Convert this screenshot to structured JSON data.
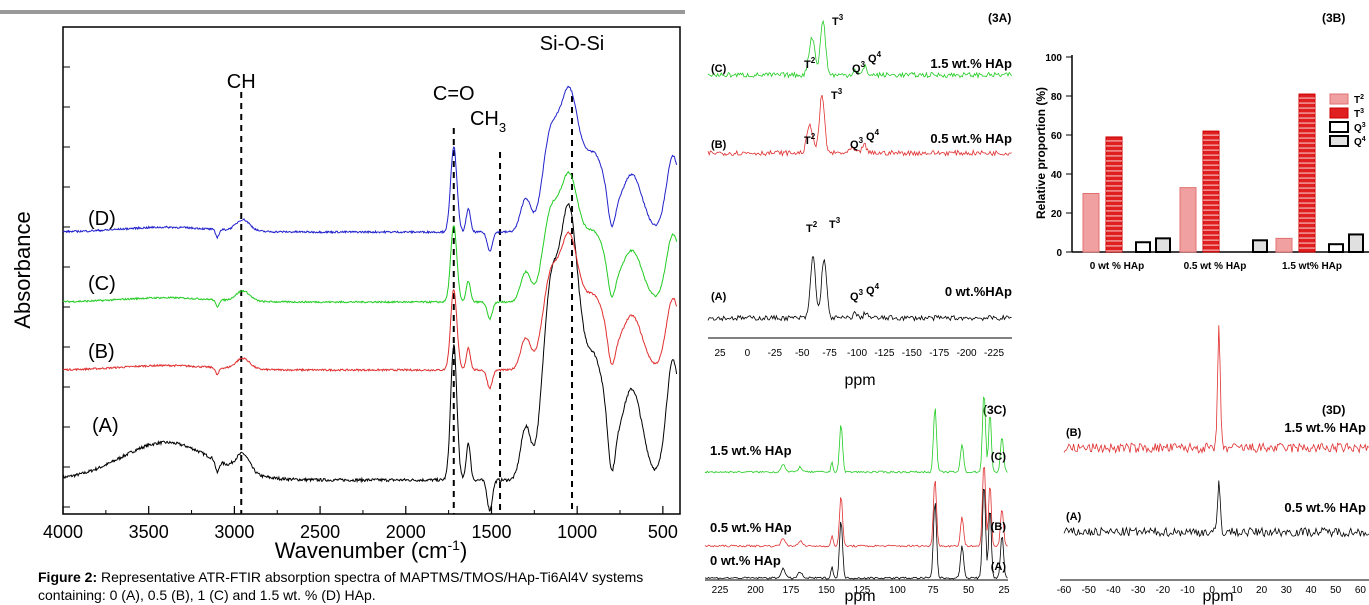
{
  "caption": {
    "label": "Figure 2:",
    "text": "Representative ATR-FTIR absorption spectra of MAPTMS/TMOS/HAp-Ti6Al4V systems containing: 0 (A), 0.5 (B), 1 (C) and 1.5 wt. % (D) HAp."
  },
  "chart_data": [
    {
      "id": "ftir",
      "type": "line",
      "xlabel": "Wavenumber (cm",
      "xlabel_sup": "-1",
      "xlabel_end": ")",
      "ylabel": "Absorbance",
      "xlim": [
        4000,
        400
      ],
      "xticks": [
        "4000",
        "3500",
        "3000",
        "2500",
        "2000",
        "1500",
        "1000",
        "500"
      ],
      "annotations": [
        {
          "label": "CH",
          "x": 2960
        },
        {
          "label": "C=O",
          "x": 1720
        },
        {
          "label": "CH",
          "sub": "3",
          "x": 1450
        },
        {
          "label": "Si-O-Si",
          "x": 1030
        }
      ],
      "series": [
        {
          "name": "(A)",
          "color": "#000000"
        },
        {
          "name": "(B)",
          "color": "#e03030"
        },
        {
          "name": "(C)",
          "color": "#22cc22"
        },
        {
          "name": "(D)",
          "color": "#2222cc"
        }
      ]
    },
    {
      "id": "3A",
      "type": "line",
      "panel": "(3A)",
      "xlabel": "ppm",
      "xticks": [
        "25",
        "0",
        "-25",
        "-50",
        "-75",
        "-100",
        "-125",
        "-150",
        "-175",
        "-200",
        "-225"
      ],
      "series": [
        {
          "name": "(C)",
          "label": "1.5 wt.% HAp",
          "color": "#22cc22",
          "peaks": [
            "T",
            "T",
            "Q",
            "Q"
          ]
        },
        {
          "name": "(B)",
          "label": "0.5 wt.% HAp",
          "color": "#e03030"
        },
        {
          "name": "(A)",
          "label": "0 wt.%HAp",
          "color": "#000000"
        }
      ]
    },
    {
      "id": "3B",
      "type": "bar",
      "panel": "(3B)",
      "ylabel": "Relative proportion (%)",
      "ylim": [
        0,
        100
      ],
      "yticks": [
        "0",
        "20",
        "40",
        "60",
        "80",
        "100"
      ],
      "categories": [
        "0 wt % HAp",
        "0.5 wt % HAp",
        "1.5  wt% HAp"
      ],
      "series": [
        {
          "name": "T2",
          "values": [
            30,
            33,
            7
          ]
        },
        {
          "name": "T3",
          "values": [
            59,
            62,
            81
          ]
        },
        {
          "name": "Q3",
          "values": [
            5,
            0,
            4
          ]
        },
        {
          "name": "Q4",
          "values": [
            7,
            6,
            9
          ]
        }
      ],
      "legend": [
        "T",
        "T",
        "Q",
        "Q"
      ]
    },
    {
      "id": "3C",
      "type": "line",
      "panel": "(3C)",
      "xlabel": "ppm",
      "xticks": [
        "225",
        "200",
        "175",
        "150",
        "125",
        "100",
        "75",
        "50",
        "25"
      ],
      "series": [
        {
          "name": "(C)",
          "label": "1.5 wt.% HAp",
          "color": "#22cc22"
        },
        {
          "name": "(B)",
          "label": "0.5 wt.% HAp",
          "color": "#e03030"
        },
        {
          "name": "(A)",
          "label": "0 wt.% HAp",
          "color": "#000000"
        }
      ]
    },
    {
      "id": "3D",
      "type": "line",
      "panel": "(3D)",
      "xlabel": "ppm",
      "xticks": [
        "-60",
        "-50",
        "-40",
        "-30",
        "-20",
        "-10",
        "0",
        "10",
        "20",
        "30",
        "40",
        "50",
        "60"
      ],
      "series": [
        {
          "name": "(B)",
          "label": "1.5 wt.% HAp",
          "color": "#e03030"
        },
        {
          "name": "(A)",
          "label": "0.5 wt.% HAp",
          "color": "#000000"
        }
      ]
    }
  ]
}
